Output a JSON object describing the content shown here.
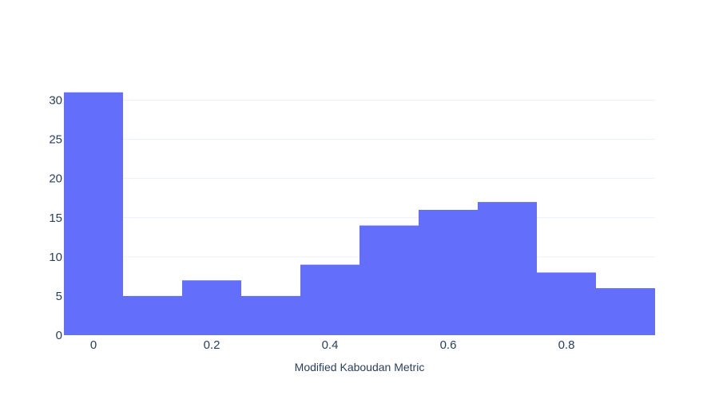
{
  "chart_data": {
    "type": "bar",
    "title": "",
    "xlabel": "Modified Kaboudan Metric",
    "ylabel": "",
    "bin_centers": [
      0,
      0.1,
      0.2,
      0.3,
      0.4,
      0.5,
      0.6,
      0.7,
      0.8,
      0.9
    ],
    "bin_width": 0.1,
    "values": [
      31,
      5,
      7,
      5,
      9,
      14,
      16,
      17,
      8,
      6
    ],
    "x_ticks": [
      "0",
      "0.2",
      "0.4",
      "0.6",
      "0.8"
    ],
    "y_ticks": [
      "0",
      "5",
      "10",
      "15",
      "20",
      "25",
      "30"
    ],
    "xlim": [
      -0.05,
      0.95
    ],
    "ylim": [
      0,
      32.6
    ],
    "grid": true,
    "legend": "none",
    "colors": {
      "bar": "#636efa",
      "grid": "#ebf0f8",
      "text": "#2a3f5f",
      "background": "#ffffff"
    }
  }
}
